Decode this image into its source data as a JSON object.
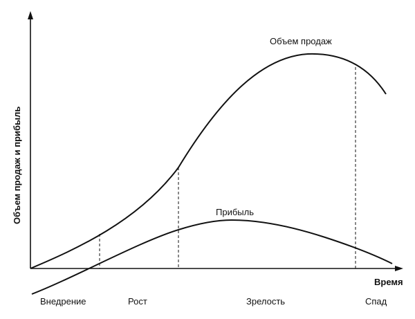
{
  "y_axis_label": "Объем продаж и прибыль",
  "x_axis_label": "Время",
  "curves": {
    "sales_label": "Объем продаж",
    "profit_label": "Прибыль"
  },
  "stages": [
    "Внедрение",
    "Рост",
    "Зрелость",
    "Спад"
  ]
}
